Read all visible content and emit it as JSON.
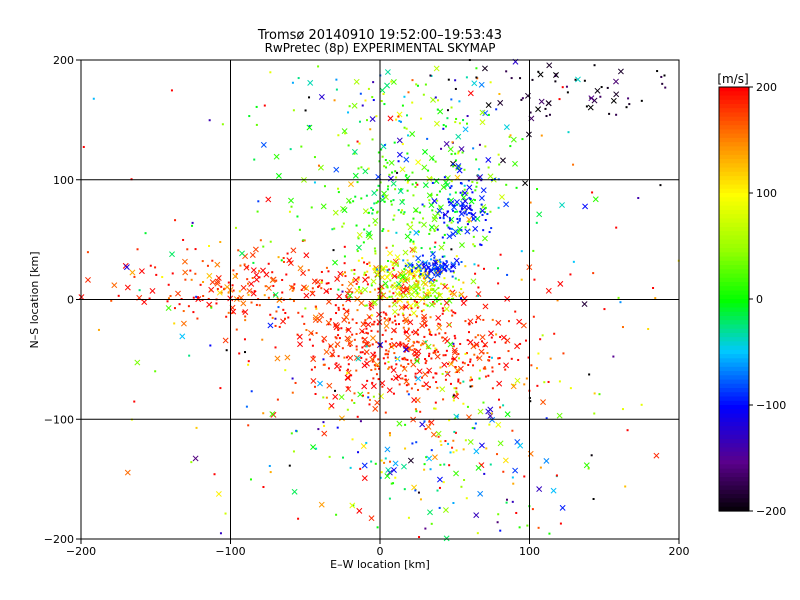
{
  "chart_data": {
    "type": "scatter",
    "title": "Tromsø 20140910 19:52:00–19:53:43",
    "subtitle": "RwPretec (8p) EXPERIMENTAL SKYMAP",
    "xlabel": "E–W location [km]",
    "ylabel": "N–S location [km]",
    "xlim": [
      -200,
      200
    ],
    "ylim": [
      -200,
      200
    ],
    "xticks": [
      -200,
      -100,
      0,
      100,
      200
    ],
    "yticks": [
      -200,
      -100,
      0,
      100,
      200
    ],
    "x_tick_labels": [
      "−200",
      "−100",
      "0",
      "100",
      "200"
    ],
    "y_tick_labels": [
      "−200",
      "−100",
      "0",
      "100",
      "200"
    ],
    "grid": true,
    "colorbar": {
      "label": "[m/s]",
      "range": [
        -200,
        200
      ],
      "ticks": [
        200,
        100,
        0,
        -100,
        -200
      ],
      "tick_labels": [
        "200",
        "100",
        "0",
        "−100",
        "−200"
      ],
      "colormap": "rainbow (black → purple → blue → cyan → green → yellow → red)"
    },
    "markers": [
      "dot",
      "x"
    ],
    "clusters": [
      {
        "name": "red-core",
        "x": 15,
        "y": -40,
        "sx": 40,
        "sy": 25,
        "n": 520,
        "v": 190,
        "vs": 20
      },
      {
        "name": "red-band",
        "x": -70,
        "y": 12,
        "sx": 60,
        "sy": 15,
        "n": 260,
        "v": 185,
        "vs": 25
      },
      {
        "name": "yellow-green",
        "x": 20,
        "y": 15,
        "sx": 18,
        "sy": 12,
        "n": 220,
        "v": 80,
        "vs": 35
      },
      {
        "name": "green-cyan",
        "x": 25,
        "y": 80,
        "sx": 35,
        "sy": 25,
        "n": 230,
        "v": 20,
        "vs": 25
      },
      {
        "name": "blue-east",
        "x": 55,
        "y": 75,
        "sx": 10,
        "sy": 12,
        "n": 90,
        "v": -95,
        "vs": 10
      },
      {
        "name": "blue-center",
        "x": 35,
        "y": 27,
        "sx": 12,
        "sy": 5,
        "n": 80,
        "v": -90,
        "vs": 15
      },
      {
        "name": "north-mix",
        "x": 30,
        "y": 150,
        "sx": 45,
        "sy": 30,
        "n": 150,
        "v": -10,
        "vs": 80
      },
      {
        "name": "southeast-mix",
        "x": 40,
        "y": -130,
        "sx": 45,
        "sy": 45,
        "n": 200,
        "v": 20,
        "vs": 120
      },
      {
        "name": "scatter",
        "x": 0,
        "y": 0,
        "sx": 130,
        "sy": 120,
        "n": 300,
        "v": 60,
        "vs": 130
      },
      {
        "name": "purple-black-ne",
        "x": 120,
        "y": 180,
        "sx": 40,
        "sy": 20,
        "n": 70,
        "v": -185,
        "vs": 15
      }
    ],
    "cross_fraction": 0.3
  }
}
